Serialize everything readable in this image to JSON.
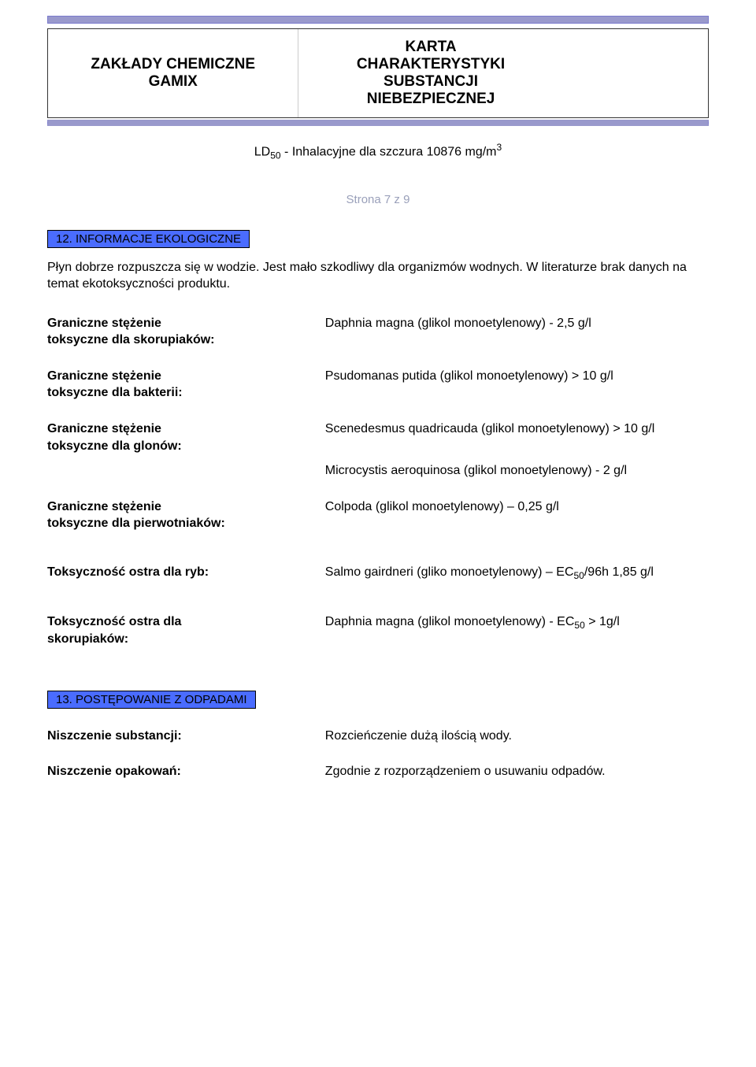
{
  "colors": {
    "chip_bg": "#4a6cff",
    "band": "#9999cc",
    "pagenum": "#9aa0ba",
    "text": "#000000",
    "bg": "#ffffff"
  },
  "header": {
    "left": "ZAKŁADY CHEMICZNE\nGAMIX",
    "center": "KARTA\nCHARAKTERYSTYKI\nSUBSTANCJI\nNIEBEZPIECZNEJ"
  },
  "ld_line": {
    "prefix": "LD",
    "sub": "50",
    "mid": " - Inhalacyjne dla szczura 10876 mg/m",
    "sup": "3"
  },
  "page_num": "Strona 7 z 9",
  "section12": {
    "title": "12. INFORMACJE EKOLOGICZNE",
    "intro": "Płyn dobrze rozpuszcza się w wodzie. Jest mało szkodliwy dla organizmów wodnych. W literaturze brak danych na temat ekotoksyczności produktu.",
    "rows": [
      {
        "label": "Graniczne stężenie\ntoksyczne dla skorupiaków:",
        "value": "Daphnia magna (glikol monoetylenowy) - 2,5 g/l"
      },
      {
        "label": "Graniczne stężenie\ntoksyczne dla bakterii:",
        "value": "Psudomanas putida (glikol monoetylenowy) > 10 g/l"
      },
      {
        "label": "Graniczne stężenie\ntoksyczne dla glonów:",
        "value": "Scenedesmus quadricauda (glikol monoetylenowy) > 10 g/l",
        "extra": "Microcystis aeroquinosa (glikol monoetylenowy) - 2 g/l"
      },
      {
        "label": "Graniczne stężenie\ntoksyczne dla pierwotniaków:",
        "value": "Colpoda (glikol monoetylenowy) – 0,25 g/l"
      }
    ],
    "fish": {
      "label": "Toksyczność ostra dla ryb:",
      "value_prefix": "Salmo gairdneri (gliko monoetylenowy) – EC",
      "value_sub": "50",
      "value_suffix": "/96h 1,85 g/l"
    },
    "crust": {
      "label": "Toksyczność ostra dla\nskorupiaków:",
      "value_prefix": "Daphnia magna (glikol monoetylenowy) -  EC",
      "value_sub": "50",
      "value_suffix": " > 1g/l"
    }
  },
  "section13": {
    "title": "13. POSTĘPOWANIE Z ODPADAMI",
    "rows": [
      {
        "label": "Niszczenie substancji:",
        "value": "Rozcieńczenie dużą ilością wody."
      },
      {
        "label": "Niszczenie opakowań:",
        "value": "Zgodnie z rozporządzeniem o usuwaniu odpadów."
      }
    ]
  }
}
